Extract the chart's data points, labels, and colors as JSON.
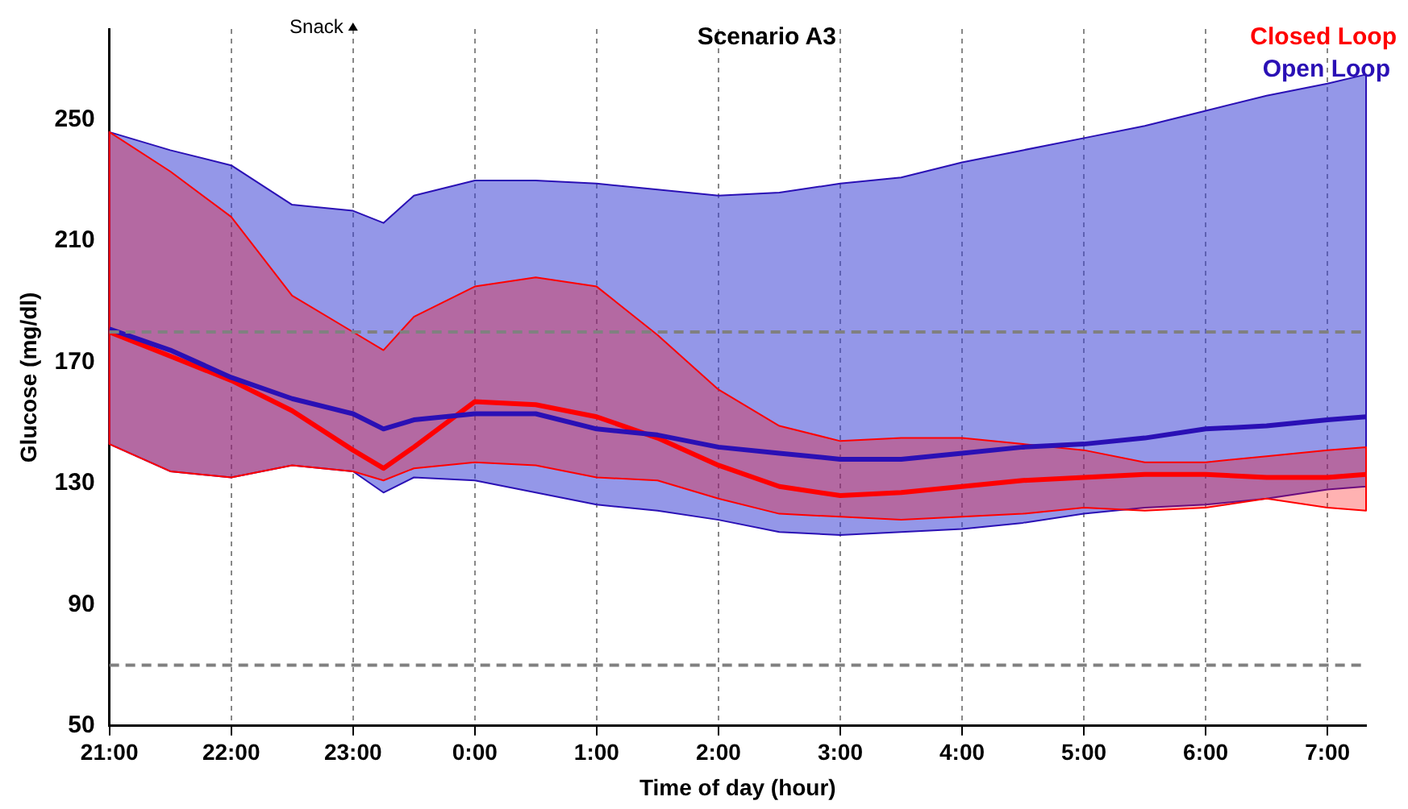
{
  "chart_data": {
    "type": "line",
    "title": "Scenario A3",
    "xlabel": "Time of day (hour)",
    "ylabel": "Glucose (mg/dl)",
    "x": [
      "2000-01-01T21:00",
      "2000-01-01T21:30",
      "2000-01-01T22:00",
      "2000-01-01T22:30",
      "2000-01-01T23:00",
      "2000-01-01T23:15",
      "2000-01-01T23:30",
      "2000-01-02T00:00",
      "2000-01-02T00:30",
      "2000-01-02T01:00",
      "2000-01-02T01:30",
      "2000-01-02T02:00",
      "2000-01-02T02:30",
      "2000-01-02T03:00",
      "2000-01-02T03:30",
      "2000-01-02T04:00",
      "2000-01-02T04:30",
      "2000-01-02T05:00",
      "2000-01-02T05:30",
      "2000-01-02T06:00",
      "2000-01-02T06:30",
      "2000-01-02T07:00",
      "2000-01-02T07:19"
    ],
    "series": [
      {
        "name": "Open Loop",
        "color": "#2a10b5",
        "values": [
          181,
          174,
          165,
          158,
          153,
          148,
          151,
          153,
          153,
          148,
          146,
          142,
          140,
          138,
          138,
          140,
          142,
          143,
          145,
          148,
          149,
          151,
          152
        ],
        "lower": [
          143,
          134,
          132,
          136,
          134,
          127,
          132,
          131,
          127,
          123,
          121,
          118,
          114,
          113,
          114,
          115,
          117,
          120,
          122,
          123,
          125,
          128,
          129
        ],
        "upper": [
          246,
          240,
          235,
          222,
          220,
          216,
          225,
          230,
          230,
          229,
          227,
          225,
          226,
          229,
          231,
          236,
          240,
          244,
          248,
          253,
          258,
          262,
          265
        ]
      },
      {
        "name": "Closed Loop",
        "color": "#ff0000",
        "values": [
          180,
          172,
          164,
          154,
          141,
          135,
          142,
          157,
          156,
          152,
          145,
          136,
          129,
          126,
          127,
          129,
          131,
          132,
          133,
          133,
          132,
          132,
          133
        ],
        "lower": [
          143,
          134,
          132,
          136,
          134,
          131,
          135,
          137,
          136,
          132,
          131,
          125,
          120,
          119,
          118,
          119,
          120,
          122,
          121,
          122,
          125,
          122,
          121
        ],
        "upper": [
          246,
          233,
          218,
          192,
          180,
          174,
          185,
          195,
          198,
          195,
          179,
          161,
          149,
          144,
          145,
          145,
          143,
          141,
          137,
          137,
          139,
          141,
          142
        ]
      }
    ],
    "xlim": [
      "2000-01-01T21:00",
      "2000-01-02T07:19"
    ],
    "xticks": [
      {
        "value": "2000-01-01T21:00",
        "label": "21:00"
      },
      {
        "value": "2000-01-01T22:00",
        "label": "22:00"
      },
      {
        "value": "2000-01-01T23:00",
        "label": "23:00"
      },
      {
        "value": "2000-01-02T00:00",
        "label": "0:00"
      },
      {
        "value": "2000-01-02T01:00",
        "label": "1:00"
      },
      {
        "value": "2000-01-02T02:00",
        "label": "2:00"
      },
      {
        "value": "2000-01-02T03:00",
        "label": "3:00"
      },
      {
        "value": "2000-01-02T04:00",
        "label": "4:00"
      },
      {
        "value": "2000-01-02T05:00",
        "label": "5:00"
      },
      {
        "value": "2000-01-02T06:00",
        "label": "6:00"
      },
      {
        "value": "2000-01-02T07:00",
        "label": "7:00"
      }
    ],
    "ylim": [
      50,
      280
    ],
    "yticks": [
      50,
      90,
      130,
      170,
      210,
      250
    ],
    "ref_lines": [
      {
        "axis": "y",
        "value": 180,
        "color": "#808080",
        "line_style": "dashed"
      },
      {
        "axis": "y",
        "value": 70,
        "color": "#808080",
        "line_style": "dashed"
      }
    ],
    "annotations": [
      {
        "text": "Snack",
        "x": "2000-01-01T23:00"
      }
    ],
    "grid": "x",
    "legend": "top right",
    "marker": "none",
    "line_style": "solid"
  }
}
